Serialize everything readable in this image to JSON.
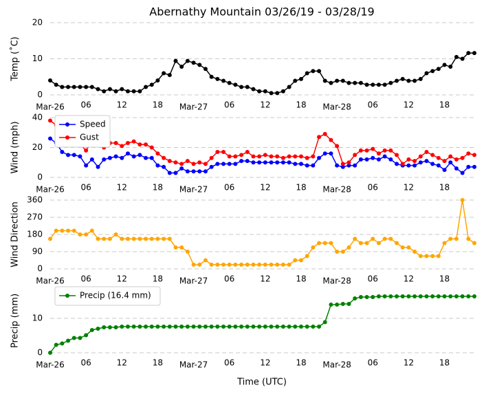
{
  "chart_data": [
    {
      "type": "line",
      "title": "Abernathy Mountain 03/26/19 - 03/28/19",
      "ylabel": "Temp (˚C)",
      "categories": [
        "Mar-26",
        null,
        null,
        null,
        null,
        null,
        "06",
        null,
        null,
        null,
        null,
        null,
        "12",
        null,
        null,
        null,
        null,
        null,
        "18",
        null,
        null,
        null,
        null,
        null,
        "Mar-27",
        null,
        null,
        null,
        null,
        null,
        "06",
        null,
        null,
        null,
        null,
        null,
        "12",
        null,
        null,
        null,
        null,
        null,
        "18",
        null,
        null,
        null,
        null,
        null,
        "Mar-28",
        null,
        null,
        null,
        null,
        null,
        "06",
        null,
        null,
        null,
        null,
        null,
        "12",
        null,
        null,
        null,
        null,
        null,
        "18",
        null,
        null,
        null,
        null,
        null
      ],
      "series": [
        {
          "color": "#000000",
          "values": [
            4.0,
            2.8,
            2.2,
            2.2,
            2.2,
            2.2,
            2.2,
            2.2,
            1.6,
            1.0,
            1.6,
            1.0,
            1.6,
            1.0,
            1.0,
            1.0,
            2.2,
            2.8,
            4.0,
            6.0,
            5.5,
            9.4,
            7.8,
            9.4,
            8.9,
            8.3,
            7.2,
            5.0,
            4.4,
            3.9,
            3.3,
            2.8,
            2.2,
            2.2,
            1.6,
            1.0,
            1.0,
            0.5,
            0.5,
            1.0,
            2.2,
            3.9,
            4.4,
            6.0,
            6.6,
            6.6,
            3.9,
            3.3,
            3.9,
            3.9,
            3.3,
            3.3,
            3.3,
            2.8,
            2.8,
            2.8,
            2.8,
            3.3,
            3.9,
            4.4,
            3.9,
            3.9,
            4.4,
            6.0,
            6.6,
            7.2,
            8.3,
            7.8,
            10.5,
            10.0,
            11.6,
            11.6
          ]
        }
      ],
      "ylim": [
        0,
        20
      ],
      "yticks": [
        0,
        10,
        20
      ],
      "grid": true
    },
    {
      "type": "line",
      "ylabel": "Wind (mph)",
      "legend": "upper left",
      "categories": [
        "Mar-26",
        null,
        null,
        null,
        null,
        null,
        "06",
        null,
        null,
        null,
        null,
        null,
        "12",
        null,
        null,
        null,
        null,
        null,
        "18",
        null,
        null,
        null,
        null,
        null,
        "Mar-27",
        null,
        null,
        null,
        null,
        null,
        "06",
        null,
        null,
        null,
        null,
        null,
        "12",
        null,
        null,
        null,
        null,
        null,
        "18",
        null,
        null,
        null,
        null,
        null,
        "Mar-28",
        null,
        null,
        null,
        null,
        null,
        "06",
        null,
        null,
        null,
        null,
        null,
        "12",
        null,
        null,
        null,
        null,
        null,
        "18",
        null,
        null,
        null,
        null,
        null
      ],
      "series": [
        {
          "name": "Speed",
          "color": "#0000ff",
          "values": [
            26,
            23,
            17,
            15,
            15,
            14,
            8,
            12,
            7,
            12,
            13,
            14,
            13,
            16,
            14,
            15,
            13,
            13,
            8,
            7,
            3,
            3,
            6,
            4,
            4,
            4,
            4,
            7,
            9,
            9,
            9,
            9,
            11,
            11,
            10,
            10,
            10,
            10,
            10,
            10,
            10,
            9,
            9,
            8,
            8,
            13,
            16,
            16,
            8,
            7,
            8,
            8,
            12,
            12,
            13,
            12,
            14,
            12,
            9,
            8,
            8,
            8,
            10,
            11,
            9,
            8,
            5,
            10,
            6,
            3,
            7,
            7
          ]
        },
        {
          "name": "Gust",
          "color": "#ff0000",
          "values": [
            38,
            35,
            30,
            25,
            26,
            22,
            18,
            24,
            28,
            20,
            23,
            23,
            21,
            23,
            24,
            22,
            22,
            20,
            16,
            13,
            11,
            10,
            9,
            11,
            9,
            10,
            9,
            13,
            17,
            17,
            14,
            14,
            15,
            17,
            14,
            14,
            15,
            14,
            14,
            13,
            14,
            14,
            14,
            13,
            14,
            27,
            29,
            25,
            21,
            9,
            10,
            15,
            18,
            18,
            19,
            16,
            18,
            18,
            15,
            9,
            12,
            11,
            14,
            17,
            15,
            13,
            11,
            14,
            12,
            13,
            16,
            15
          ]
        }
      ],
      "ylim": [
        0,
        40
      ],
      "yticks": [
        0,
        20,
        40
      ],
      "grid": true
    },
    {
      "type": "line",
      "ylabel": "Wind Direction",
      "categories": [
        "Mar-26",
        null,
        null,
        null,
        null,
        null,
        "06",
        null,
        null,
        null,
        null,
        null,
        "12",
        null,
        null,
        null,
        null,
        null,
        "18",
        null,
        null,
        null,
        null,
        null,
        "Mar-27",
        null,
        null,
        null,
        null,
        null,
        "06",
        null,
        null,
        null,
        null,
        null,
        "12",
        null,
        null,
        null,
        null,
        null,
        "18",
        null,
        null,
        null,
        null,
        null,
        "Mar-28",
        null,
        null,
        null,
        null,
        null,
        "06",
        null,
        null,
        null,
        null,
        null,
        "12",
        null,
        null,
        null,
        null,
        null,
        "18",
        null,
        null,
        null,
        null,
        null
      ],
      "series": [
        {
          "color": "#ffa500",
          "values": [
            157,
            200,
            200,
            200,
            200,
            180,
            180,
            200,
            157,
            157,
            157,
            180,
            157,
            157,
            157,
            157,
            157,
            157,
            157,
            157,
            157,
            112,
            112,
            90,
            22,
            22,
            45,
            22,
            22,
            22,
            22,
            22,
            22,
            22,
            22,
            22,
            22,
            22,
            22,
            22,
            22,
            45,
            45,
            67,
            112,
            135,
            135,
            135,
            90,
            90,
            112,
            157,
            135,
            135,
            157,
            135,
            157,
            157,
            135,
            112,
            112,
            90,
            67,
            67,
            67,
            67,
            135,
            157,
            157,
            360,
            157,
            135
          ]
        }
      ],
      "ylim": [
        0,
        360
      ],
      "yticks": [
        0,
        90,
        180,
        270,
        360
      ],
      "grid": true
    },
    {
      "type": "line",
      "ylabel": "Precip (mm)",
      "x_label": "Time (UTC)",
      "legend": "upper left",
      "categories": [
        "Mar-26",
        null,
        null,
        null,
        null,
        null,
        "06",
        null,
        null,
        null,
        null,
        null,
        "12",
        null,
        null,
        null,
        null,
        null,
        "18",
        null,
        null,
        null,
        null,
        null,
        "Mar-27",
        null,
        null,
        null,
        null,
        null,
        "06",
        null,
        null,
        null,
        null,
        null,
        "12",
        null,
        null,
        null,
        null,
        null,
        "18",
        null,
        null,
        null,
        null,
        null,
        "Mar-28",
        null,
        null,
        null,
        null,
        null,
        "06",
        null,
        null,
        null,
        null,
        null,
        "12",
        null,
        null,
        null,
        null,
        null,
        "18",
        null,
        null,
        null,
        null,
        null
      ],
      "series": [
        {
          "name": "Precip (16.4 mm)",
          "color": "#008000",
          "values": [
            0,
            2.3,
            2.7,
            3.5,
            4.3,
            4.3,
            5.1,
            6.6,
            7.0,
            7.4,
            7.4,
            7.4,
            7.6,
            7.6,
            7.6,
            7.6,
            7.6,
            7.6,
            7.6,
            7.6,
            7.6,
            7.6,
            7.6,
            7.6,
            7.6,
            7.6,
            7.6,
            7.6,
            7.6,
            7.6,
            7.6,
            7.6,
            7.6,
            7.6,
            7.6,
            7.6,
            7.6,
            7.6,
            7.6,
            7.6,
            7.6,
            7.6,
            7.6,
            7.6,
            7.6,
            7.6,
            8.9,
            14.0,
            14.0,
            14.2,
            14.2,
            15.8,
            16.2,
            16.2,
            16.2,
            16.4,
            16.4,
            16.4,
            16.4,
            16.4,
            16.4,
            16.4,
            16.4,
            16.4,
            16.4,
            16.4,
            16.4,
            16.4,
            16.4,
            16.4,
            16.4,
            16.4
          ]
        }
      ],
      "ylim": [
        0,
        18.6
      ],
      "yticks": [
        0,
        10
      ],
      "grid": true
    }
  ]
}
